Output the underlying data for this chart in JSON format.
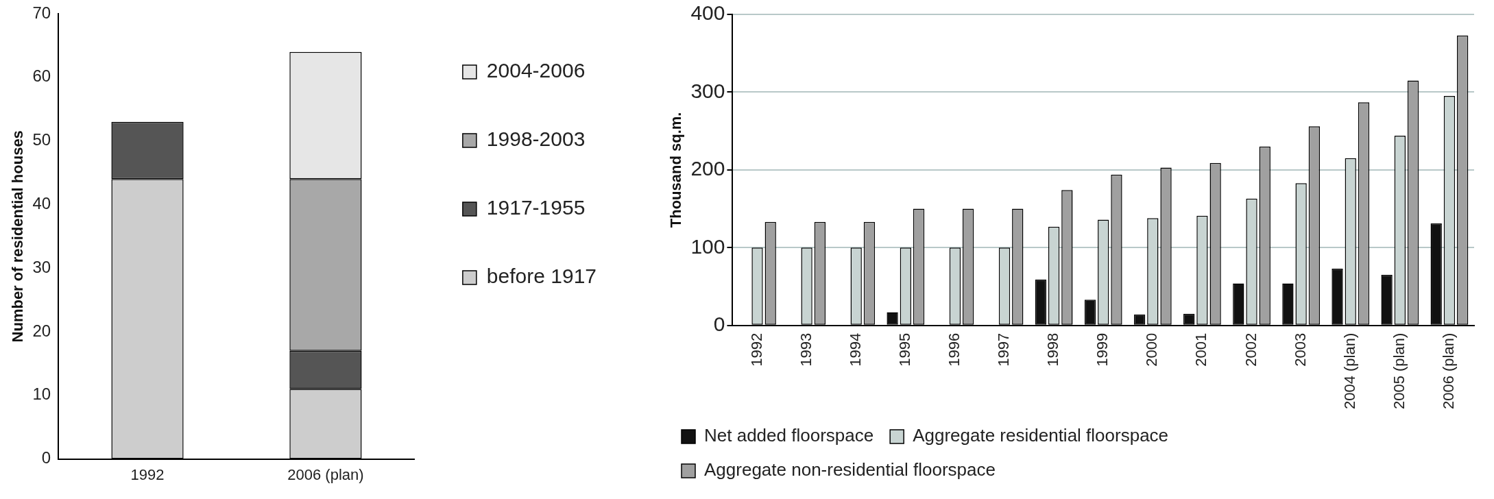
{
  "chart_data": [
    {
      "type": "bar",
      "ylabel": "Number of residential houses",
      "categories": [
        "1992",
        "2006 (plan)"
      ],
      "stacked": true,
      "ylim": [
        0,
        70
      ],
      "yticks": [
        0,
        10,
        20,
        30,
        40,
        50,
        60,
        70
      ],
      "legend": "right",
      "series": [
        {
          "name": "before 1917",
          "color": "#cdcdcd",
          "values": [
            44,
            11
          ]
        },
        {
          "name": "1917-1955",
          "color": "#555555",
          "values": [
            9,
            6
          ]
        },
        {
          "name": "1998-2003",
          "color": "#a8a8a8",
          "values": [
            0,
            27
          ]
        },
        {
          "name": "2004-2006",
          "color": "#e6e6e6",
          "values": [
            0,
            20
          ]
        }
      ]
    },
    {
      "type": "bar",
      "ylabel": "Thousand sq.m.",
      "categories": [
        "1992",
        "1993",
        "1994",
        "1995",
        "1996",
        "1997",
        "1998",
        "1999",
        "2000",
        "2001",
        "2002",
        "2003",
        "2004 (plan)",
        "2005 (plan)",
        "2006 (plan)"
      ],
      "ylim": [
        0,
        400
      ],
      "yticks": [
        0,
        100,
        200,
        300,
        400
      ],
      "grid": "y",
      "legend": "bottom",
      "series": [
        {
          "name": "Net added floorspace",
          "color": "#111111",
          "values": [
            0,
            0,
            0,
            17,
            0,
            0,
            59,
            33,
            14,
            15,
            54,
            54,
            73,
            65,
            131
          ]
        },
        {
          "name": "Aggregate residential floorspace",
          "color": "#c8d4d2",
          "values": [
            100,
            100,
            100,
            100,
            100,
            100,
            127,
            136,
            138,
            141,
            163,
            183,
            215,
            244,
            295
          ]
        },
        {
          "name": "Aggregate non-residential floorspace",
          "color": "#a0a0a0",
          "values": [
            133,
            133,
            133,
            150,
            150,
            150,
            174,
            194,
            203,
            209,
            230,
            256,
            287,
            315,
            373
          ]
        }
      ]
    }
  ]
}
